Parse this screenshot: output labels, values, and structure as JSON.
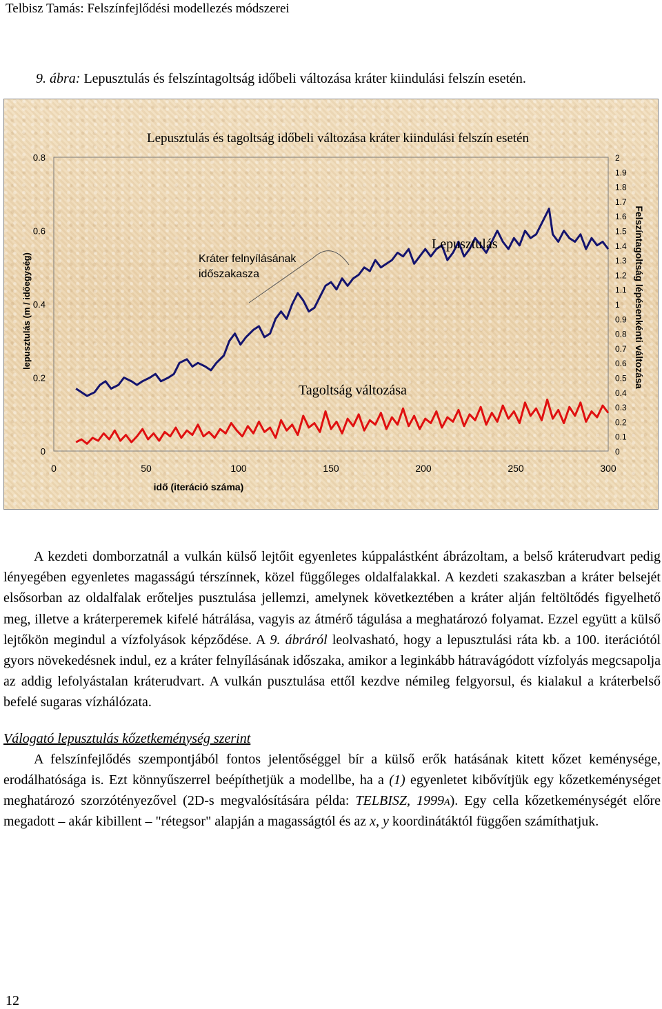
{
  "header": "Telbisz Tamás: Felszínfejlődési modellezés módszerei",
  "caption": {
    "label": "9. ábra:",
    "text": "Lepusztulás és felszíntagoltság időbeli változása kráter kiindulási felszín esetén."
  },
  "chart_data": {
    "type": "line",
    "title": "Lepusztulás és tagoltság időbeli változása kráter kiindulási felszín esetén",
    "xlabel": "idő (iteráció száma)",
    "ylabel_left": "lepusztulás (m / időegység)",
    "ylabel_right": "Felszíntagoltság lépésenkénti változása",
    "xlim": [
      0,
      300
    ],
    "ylim_left": [
      0,
      0.8
    ],
    "ylim_right": [
      0,
      2
    ],
    "x_ticks": [
      "0",
      "50",
      "100",
      "150",
      "200",
      "250",
      "300"
    ],
    "y_ticks_left": [
      "0",
      "0.2",
      "0.4",
      "0.6",
      "0.8"
    ],
    "y_ticks_right": [
      "0",
      "0.1",
      "0.2",
      "0.3",
      "0.4",
      "0.5",
      "0.6",
      "0.7",
      "0.8",
      "0.9",
      "1",
      "1.1",
      "1.2",
      "1.3",
      "1.4",
      "1.5",
      "1.6",
      "1.7",
      "1.8",
      "1.9",
      "2"
    ],
    "grid": false,
    "colors": {
      "lepusztulas": "#14146e",
      "tagoltsag": "#e01010"
    },
    "annotations": {
      "crater": "Kráter felnyílásának\nidőszakasza",
      "lepusztulas": "Lepusztulás",
      "tagoltsag": "Tagoltság változása"
    },
    "series": [
      {
        "name": "Lepusztulás",
        "axis": "left",
        "points": [
          [
            12,
            0.17
          ],
          [
            15,
            0.16
          ],
          [
            18,
            0.15
          ],
          [
            22,
            0.16
          ],
          [
            25,
            0.18
          ],
          [
            28,
            0.19
          ],
          [
            31,
            0.17
          ],
          [
            35,
            0.18
          ],
          [
            38,
            0.2
          ],
          [
            42,
            0.19
          ],
          [
            45,
            0.18
          ],
          [
            48,
            0.19
          ],
          [
            52,
            0.2
          ],
          [
            55,
            0.21
          ],
          [
            58,
            0.19
          ],
          [
            62,
            0.2
          ],
          [
            65,
            0.21
          ],
          [
            68,
            0.24
          ],
          [
            72,
            0.25
          ],
          [
            75,
            0.23
          ],
          [
            78,
            0.24
          ],
          [
            82,
            0.23
          ],
          [
            85,
            0.22
          ],
          [
            88,
            0.24
          ],
          [
            92,
            0.26
          ],
          [
            95,
            0.3
          ],
          [
            98,
            0.32
          ],
          [
            101,
            0.29
          ],
          [
            104,
            0.31
          ],
          [
            108,
            0.33
          ],
          [
            111,
            0.34
          ],
          [
            114,
            0.31
          ],
          [
            117,
            0.32
          ],
          [
            120,
            0.36
          ],
          [
            123,
            0.38
          ],
          [
            126,
            0.36
          ],
          [
            129,
            0.4
          ],
          [
            132,
            0.43
          ],
          [
            135,
            0.41
          ],
          [
            138,
            0.38
          ],
          [
            141,
            0.39
          ],
          [
            144,
            0.42
          ],
          [
            147,
            0.45
          ],
          [
            150,
            0.46
          ],
          [
            153,
            0.44
          ],
          [
            156,
            0.47
          ],
          [
            159,
            0.45
          ],
          [
            162,
            0.47
          ],
          [
            165,
            0.48
          ],
          [
            168,
            0.5
          ],
          [
            171,
            0.49
          ],
          [
            174,
            0.52
          ],
          [
            177,
            0.5
          ],
          [
            180,
            0.51
          ],
          [
            183,
            0.52
          ],
          [
            186,
            0.54
          ],
          [
            189,
            0.53
          ],
          [
            192,
            0.55
          ],
          [
            195,
            0.51
          ],
          [
            198,
            0.53
          ],
          [
            201,
            0.55
          ],
          [
            204,
            0.53
          ],
          [
            207,
            0.55
          ],
          [
            210,
            0.56
          ],
          [
            213,
            0.52
          ],
          [
            216,
            0.54
          ],
          [
            219,
            0.57
          ],
          [
            222,
            0.53
          ],
          [
            225,
            0.55
          ],
          [
            228,
            0.58
          ],
          [
            231,
            0.56
          ],
          [
            234,
            0.54
          ],
          [
            237,
            0.57
          ],
          [
            240,
            0.6
          ],
          [
            243,
            0.57
          ],
          [
            246,
            0.55
          ],
          [
            249,
            0.58
          ],
          [
            252,
            0.56
          ],
          [
            255,
            0.6
          ],
          [
            258,
            0.58
          ],
          [
            261,
            0.59
          ],
          [
            264,
            0.62
          ],
          [
            266,
            0.64
          ],
          [
            268,
            0.66
          ],
          [
            270,
            0.59
          ],
          [
            273,
            0.57
          ],
          [
            276,
            0.6
          ],
          [
            279,
            0.58
          ],
          [
            282,
            0.57
          ],
          [
            285,
            0.59
          ],
          [
            288,
            0.55
          ],
          [
            291,
            0.58
          ],
          [
            294,
            0.56
          ],
          [
            297,
            0.57
          ],
          [
            300,
            0.55
          ]
        ]
      },
      {
        "name": "Tagoltság változása",
        "axis": "right",
        "points": [
          [
            12,
            0.06
          ],
          [
            15,
            0.08
          ],
          [
            18,
            0.05
          ],
          [
            21,
            0.09
          ],
          [
            24,
            0.07
          ],
          [
            27,
            0.12
          ],
          [
            30,
            0.08
          ],
          [
            33,
            0.14
          ],
          [
            36,
            0.07
          ],
          [
            39,
            0.11
          ],
          [
            42,
            0.06
          ],
          [
            45,
            0.1
          ],
          [
            48,
            0.15
          ],
          [
            51,
            0.08
          ],
          [
            54,
            0.12
          ],
          [
            57,
            0.07
          ],
          [
            60,
            0.13
          ],
          [
            63,
            0.1
          ],
          [
            66,
            0.16
          ],
          [
            69,
            0.09
          ],
          [
            72,
            0.14
          ],
          [
            75,
            0.11
          ],
          [
            78,
            0.18
          ],
          [
            81,
            0.1
          ],
          [
            84,
            0.13
          ],
          [
            87,
            0.09
          ],
          [
            90,
            0.15
          ],
          [
            93,
            0.12
          ],
          [
            96,
            0.19
          ],
          [
            99,
            0.14
          ],
          [
            102,
            0.1
          ],
          [
            105,
            0.17
          ],
          [
            108,
            0.12
          ],
          [
            111,
            0.2
          ],
          [
            114,
            0.13
          ],
          [
            117,
            0.16
          ],
          [
            120,
            0.09
          ],
          [
            123,
            0.21
          ],
          [
            126,
            0.14
          ],
          [
            129,
            0.18
          ],
          [
            132,
            0.11
          ],
          [
            135,
            0.24
          ],
          [
            138,
            0.16
          ],
          [
            141,
            0.19
          ],
          [
            144,
            0.13
          ],
          [
            147,
            0.27
          ],
          [
            150,
            0.15
          ],
          [
            153,
            0.2
          ],
          [
            156,
            0.12
          ],
          [
            159,
            0.22
          ],
          [
            162,
            0.17
          ],
          [
            165,
            0.25
          ],
          [
            168,
            0.14
          ],
          [
            171,
            0.21
          ],
          [
            174,
            0.18
          ],
          [
            177,
            0.26
          ],
          [
            180,
            0.15
          ],
          [
            183,
            0.23
          ],
          [
            186,
            0.18
          ],
          [
            189,
            0.29
          ],
          [
            192,
            0.17
          ],
          [
            195,
            0.24
          ],
          [
            198,
            0.15
          ],
          [
            201,
            0.22
          ],
          [
            204,
            0.19
          ],
          [
            207,
            0.27
          ],
          [
            210,
            0.16
          ],
          [
            213,
            0.23
          ],
          [
            216,
            0.2
          ],
          [
            219,
            0.28
          ],
          [
            222,
            0.17
          ],
          [
            225,
            0.25
          ],
          [
            228,
            0.21
          ],
          [
            231,
            0.3
          ],
          [
            234,
            0.18
          ],
          [
            237,
            0.26
          ],
          [
            240,
            0.2
          ],
          [
            243,
            0.31
          ],
          [
            246,
            0.22
          ],
          [
            249,
            0.27
          ],
          [
            252,
            0.19
          ],
          [
            255,
            0.33
          ],
          [
            258,
            0.24
          ],
          [
            261,
            0.29
          ],
          [
            264,
            0.21
          ],
          [
            267,
            0.35
          ],
          [
            270,
            0.22
          ],
          [
            273,
            0.28
          ],
          [
            276,
            0.19
          ],
          [
            279,
            0.3
          ],
          [
            282,
            0.24
          ],
          [
            285,
            0.33
          ],
          [
            288,
            0.2
          ],
          [
            291,
            0.27
          ],
          [
            294,
            0.23
          ],
          [
            297,
            0.31
          ],
          [
            300,
            0.26
          ]
        ]
      }
    ]
  },
  "body": {
    "p1": "A kezdeti domborzatnál a vulkán külső lejtőit egyenletes kúppalástként ábrázoltam, a belső kráterudvart pedig lényegében egyenletes magasságú térszínnek, közel függőleges oldalfalakkal. A kezdeti szakaszban a kráter belsejét elsősorban az oldalfalak erőteljes pusztulása jellemzi, amelynek következtében a kráter alján feltöltődés figyelhető meg, illetve a kráterperemek kifelé hátrálása, vagyis az átmérő tágulása a meghatározó folyamat. Ezzel együtt a külső lejtőkön megindul a vízfolyások képződése. A",
    "p1_ref": "9. ábráról",
    "p1_rest": "leolvasható, hogy a lepusztulási ráta kb. a 100. iterációtól gyors növekedésnek indul, ez a kráter felnyílásának időszaka, amikor a leginkább hátravágódott vízfolyás megcsapolja az addig lefolyástalan kráterudvart. A vulkán pusztulása ettől kezdve némileg felgyorsul, és kialakul a kráterbelső befelé sugaras vízhálózata.",
    "subheading": "Válogató lepusztulás kőzetkeménység szerint",
    "p2": "A felszínfejlődés szempontjából fontos jelentőséggel bír a külső erők hatásának kitett kőzet keménysége, erodálhatósága is. Ezt könnyűszerrel beépíthetjük a modellbe, ha a",
    "p2_ref": "(1)",
    "p2_mid": "egyenletet kibővítjük egy kőzetkeménységet meghatározó szorzótényezővel (2D-s megvalósítására példa:",
    "p2_cite": "TELBISZ, 1999a",
    "p2_rest": "). Egy cella kőzetkeménységét előre megadott – akár kibillent – \"rétegsor\" alapján a magasságtól és az",
    "p2_x": "x, y",
    "p2_end": "koordinátáktól függően számíthatjuk."
  },
  "page_number": "12"
}
